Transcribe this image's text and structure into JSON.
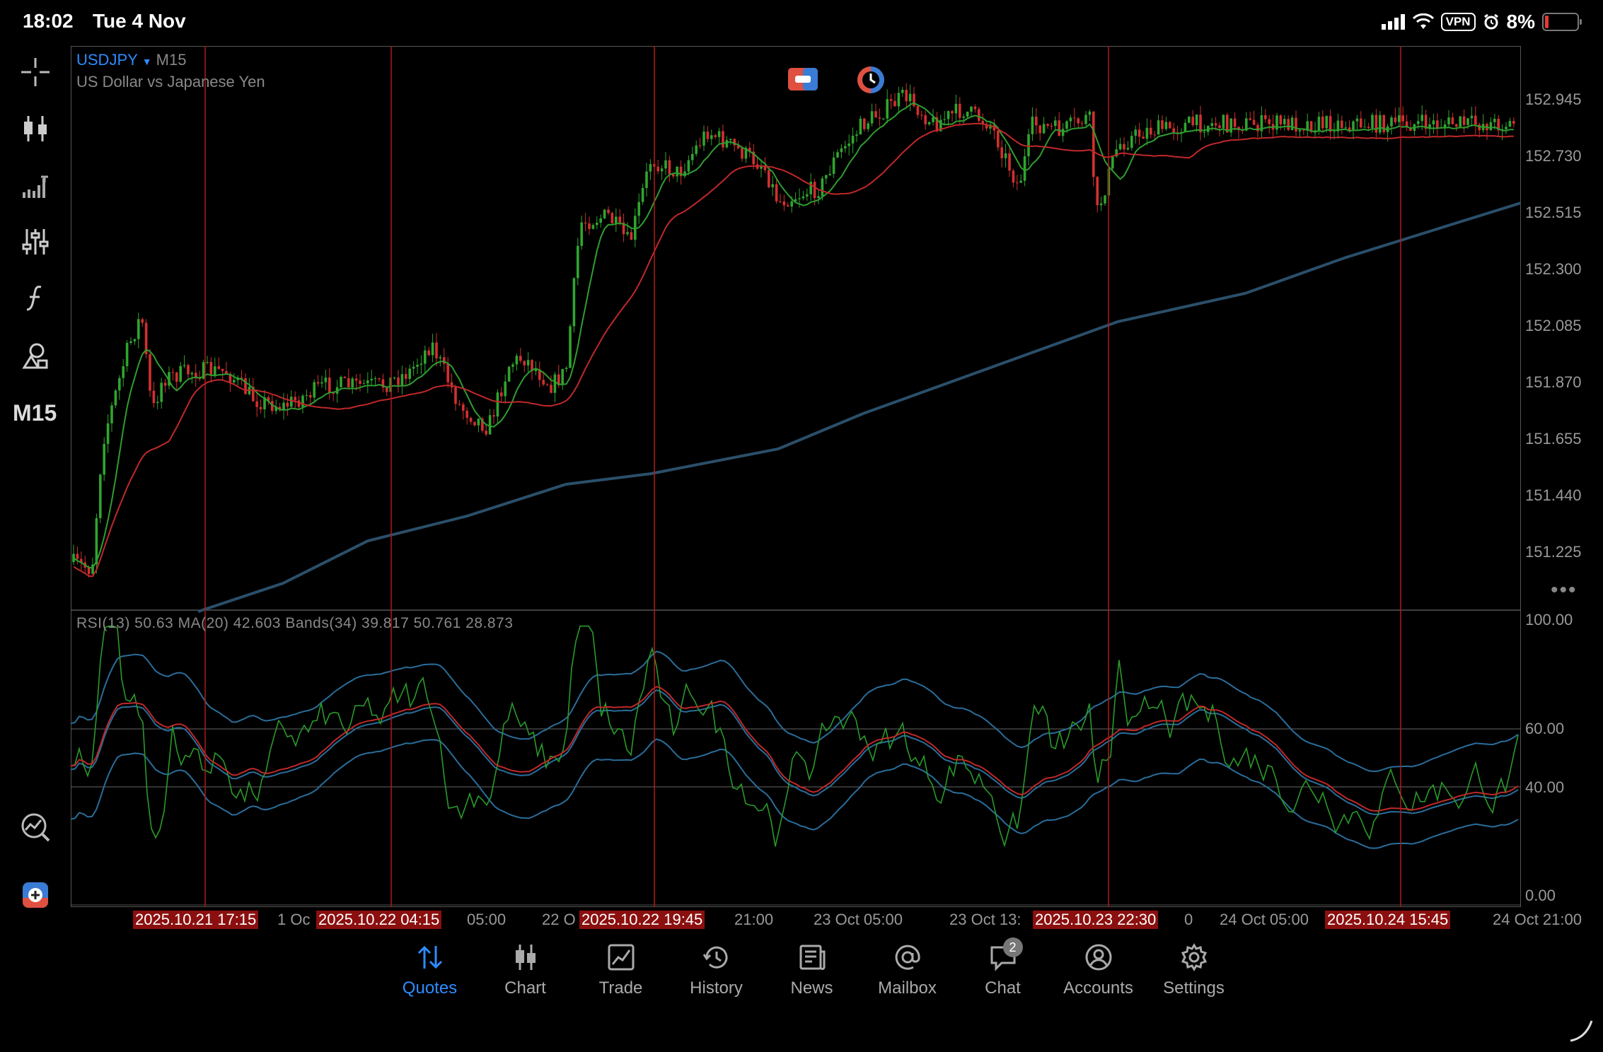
{
  "status_bar": {
    "time": "18:02",
    "date": "Tue 4 Nov",
    "vpn": "VPN",
    "battery": "8%"
  },
  "toolbar": {
    "timeframe": "M15"
  },
  "chart": {
    "symbol": "USDJPY",
    "timeframe": "M15",
    "description": "US Dollar vs Japanese Yen",
    "price_labels": [
      "152.945",
      "152.730",
      "152.515",
      "152.300",
      "152.085",
      "151.870",
      "151.655",
      "151.440",
      "151.225"
    ],
    "rsi_legend": "RSI(13) 50.63 MA(20) 42.603 Bands(34) 39.817 50.761 28.873",
    "rsi_labels": [
      "100.00",
      "60.00",
      "40.00",
      "0.00"
    ],
    "time_labels": [
      "1 Oc",
      "05:00",
      "22 O",
      "21:00",
      "23 Oct 05:00",
      "23 Oct 13:",
      "0",
      "24 Oct 05:00",
      "24 Oct 21:00"
    ],
    "vline_tags": [
      "2025.10.21 17:15",
      "2025.10.22 04:15",
      "2025.10.22 19:45",
      "2025.10.23 22:30",
      "2025.10.24 15:45"
    ],
    "colors": {
      "bull": "#2fa52f",
      "bear": "#d23030",
      "ma_fast": "#2f9d2f",
      "ma_slow": "#c0282a",
      "ma_long": "#2b4f6a",
      "vlines": "#b01a1a",
      "rsi": "#2a9a2a",
      "rsi_ma": "#c0282a",
      "bands": "#2a6d9a"
    }
  },
  "nav": {
    "items": [
      {
        "label": "Quotes",
        "icon": "quotes-icon"
      },
      {
        "label": "Chart",
        "icon": "chart-icon"
      },
      {
        "label": "Trade",
        "icon": "trade-icon"
      },
      {
        "label": "History",
        "icon": "history-icon"
      },
      {
        "label": "News",
        "icon": "news-icon"
      },
      {
        "label": "Mailbox",
        "icon": "mailbox-icon"
      },
      {
        "label": "Chat",
        "icon": "chat-icon"
      },
      {
        "label": "Accounts",
        "icon": "accounts-icon"
      },
      {
        "label": "Settings",
        "icon": "settings-icon"
      }
    ],
    "chat_badge": "2"
  }
}
